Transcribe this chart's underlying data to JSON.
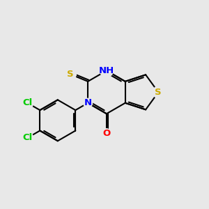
{
  "background_color": "#e8e8e8",
  "atom_colors": {
    "C": "#000000",
    "N": "#0000ff",
    "S": "#ccaa00",
    "O": "#ff0000",
    "Cl": "#00cc00",
    "H": "#0000ff"
  },
  "figsize": [
    3.0,
    3.0
  ],
  "dpi": 100
}
